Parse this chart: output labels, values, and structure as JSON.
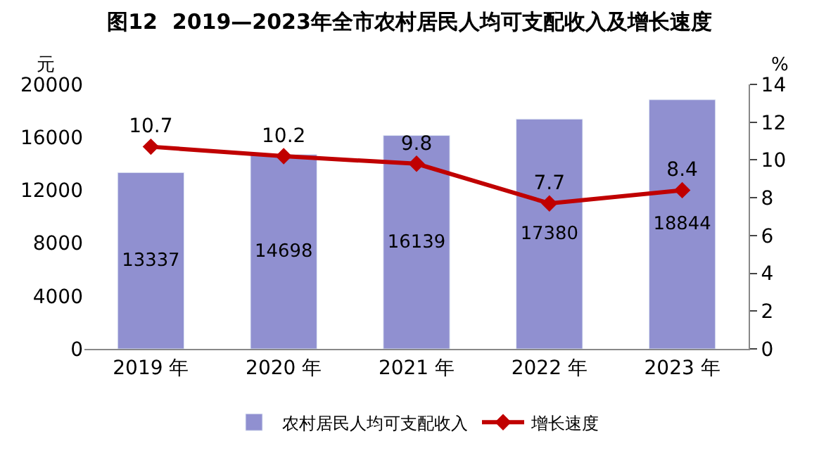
{
  "chart_data": {
    "type": "bar",
    "title": "图12  2019—2023年全市农村居民人均可支配收入及增长速度",
    "categories": [
      "2019 年",
      "2020 年",
      "2021 年",
      "2022 年",
      "2023 年"
    ],
    "series": [
      {
        "name": "农村居民人均可支配收入",
        "color": "#9090d0",
        "values": [
          13337,
          14698,
          16139,
          17380,
          18844
        ]
      },
      {
        "name": "增长速度",
        "type": "line",
        "axis": "y2",
        "color": "#c00000",
        "marker": "diamond",
        "values": [
          10.7,
          10.2,
          9.8,
          7.7,
          8.4
        ]
      }
    ],
    "ylabel": "元",
    "y2label": "%",
    "ylim": [
      0,
      20000
    ],
    "yticks": [
      0,
      4000,
      8000,
      12000,
      16000,
      20000
    ],
    "y2lim": [
      0,
      14
    ],
    "y2ticks": [
      0,
      2,
      4,
      6,
      8,
      10,
      12,
      14
    ],
    "data_labels": true,
    "legend": "bottom"
  }
}
